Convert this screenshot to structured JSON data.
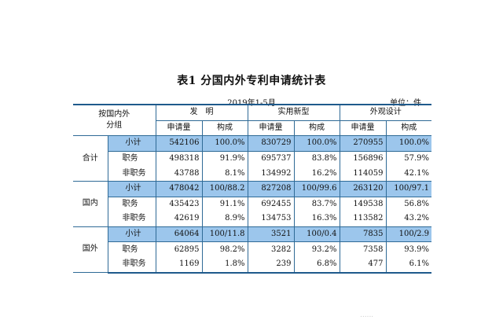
{
  "title": "表1  分国内外专利申请统计表",
  "subtitle": "2019年1-5月",
  "unit": "单位：件",
  "header": {
    "group": "按国内外分组",
    "group_line1": "按国内外",
    "group_line2": "分组",
    "cat_invention": "发　明",
    "cat_utility": "实用新型",
    "cat_design": "外观设计",
    "col_count": "申请量",
    "col_share": "构成"
  },
  "sections": [
    {
      "name": "合计",
      "rows": [
        {
          "label": "小计",
          "values": [
            "542106",
            "100.0%",
            "830729",
            "100.0%",
            "270955",
            "100.0%"
          ]
        },
        {
          "label": "职务",
          "values": [
            "498318",
            "91.9%",
            "695737",
            "83.8%",
            "156896",
            "57.9%"
          ]
        },
        {
          "label": "非职务",
          "values": [
            "43788",
            "8.1%",
            "134992",
            "16.2%",
            "114059",
            "42.1%"
          ]
        }
      ]
    },
    {
      "name": "国内",
      "rows": [
        {
          "label": "小计",
          "values": [
            "478042",
            "100/88.2",
            "827208",
            "100/99.6",
            "263120",
            "100/97.1"
          ]
        },
        {
          "label": "职务",
          "values": [
            "435423",
            "91.1%",
            "692455",
            "83.7%",
            "149538",
            "56.8%"
          ]
        },
        {
          "label": "非职务",
          "values": [
            "42619",
            "8.9%",
            "134753",
            "16.3%",
            "113582",
            "43.2%"
          ]
        }
      ]
    },
    {
      "name": "国外",
      "rows": [
        {
          "label": "小计",
          "values": [
            "64064",
            "100/11.8",
            "3521",
            "100/0.4",
            "7835",
            "100/2.9"
          ]
        },
        {
          "label": "职务",
          "values": [
            "62895",
            "98.2%",
            "3282",
            "93.2%",
            "7358",
            "93.9%"
          ]
        },
        {
          "label": "非职务",
          "values": [
            "1169",
            "1.8%",
            "239",
            "6.8%",
            "477",
            "6.1%"
          ]
        }
      ]
    }
  ],
  "watermark": "......"
}
